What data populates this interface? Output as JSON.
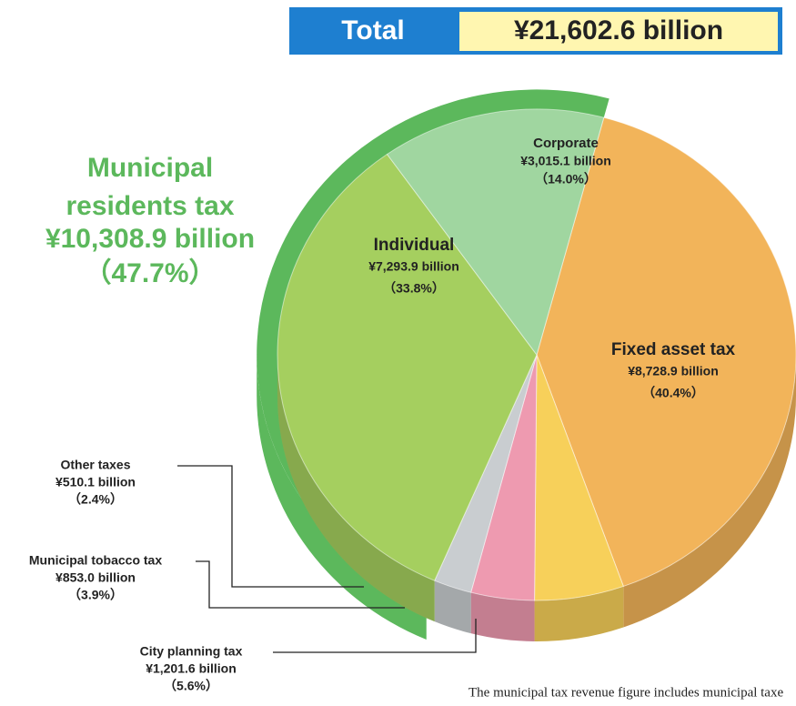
{
  "chart_data": {
    "type": "pie",
    "title": "Total",
    "total_label": "¥21,602.6 billion",
    "categories": [
      "Fixed asset tax",
      "City planning tax",
      "Municipal tobacco tax",
      "Other taxes",
      "Individual",
      "Corporate"
    ],
    "values": [
      8728.9,
      1201.6,
      853.0,
      510.1,
      7293.9,
      3015.1
    ],
    "value_labels": [
      "¥8,728.9 billion",
      "¥1,201.6 billion",
      "¥853.0 billion",
      "¥510.1 billion",
      "¥7,293.9 billion",
      "¥3,015.1 billion"
    ],
    "percentages": [
      40.4,
      5.6,
      3.9,
      2.4,
      33.8,
      14.0
    ],
    "percentage_labels": [
      "（40.4%）",
      "（5.6%）",
      "（3.9%）",
      "（2.4%）",
      "（33.8%）",
      "（14.0%）"
    ],
    "colors": [
      "#f2b45a",
      "#f7d05a",
      "#ee9ab0",
      "#c9cdd0",
      "#a5cf5f",
      "#a0d6a0"
    ],
    "group": {
      "name": "Municipal residents tax",
      "value": 10308.9,
      "value_label": "¥10,308.9 billion",
      "percentage": 47.7,
      "percentage_label": "（47.7%）",
      "color": "#5cb85c"
    },
    "note": "The municipal tax revenue figure includes municipal taxe"
  }
}
